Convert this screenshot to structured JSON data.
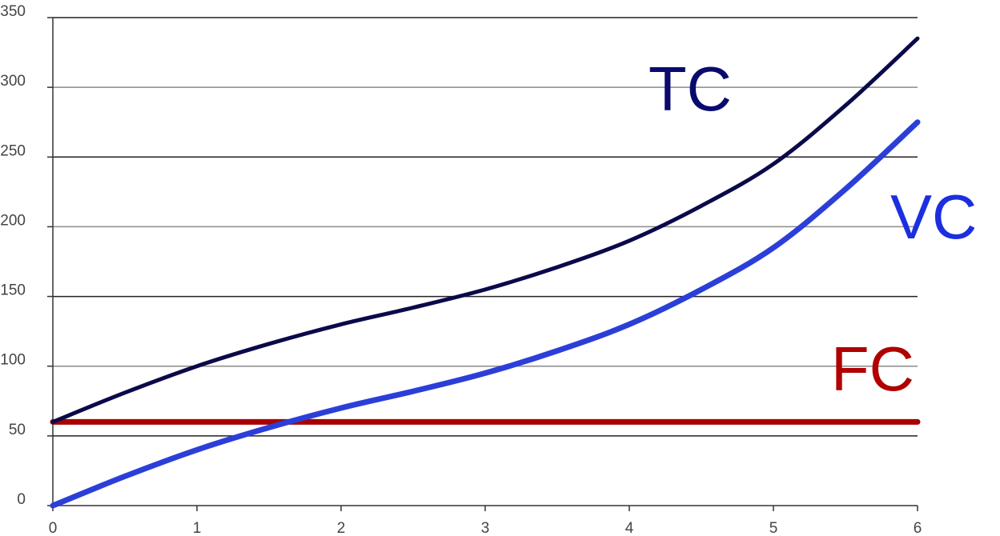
{
  "chart_data": {
    "type": "line",
    "title": "",
    "xlabel": "",
    "ylabel": "",
    "xlim": [
      0,
      6
    ],
    "ylim": [
      0,
      350
    ],
    "x_ticks": [
      "0",
      "1",
      "2",
      "3",
      "4",
      "5",
      "6"
    ],
    "y_ticks": [
      "0",
      "50",
      "100",
      "150",
      "200",
      "250",
      "300",
      "350"
    ],
    "grid": true,
    "legend": "none",
    "x": [
      0,
      0.5,
      1,
      1.5,
      2,
      2.5,
      3,
      3.5,
      4,
      4.5,
      5,
      5.5,
      6
    ],
    "series": [
      {
        "name": "TC",
        "color": "#0a0a4a",
        "label_color": "#0a0a6e",
        "values": [
          60,
          81,
          100,
          116,
          130,
          142,
          155,
          171,
          190,
          215,
          245,
          287,
          335
        ]
      },
      {
        "name": "VC",
        "color": "#2b3fd8",
        "label_color": "#1c2fe0",
        "values": [
          0,
          21,
          40,
          56,
          70,
          82,
          95,
          111,
          130,
          155,
          185,
          227,
          275
        ]
      },
      {
        "name": "FC",
        "color": "#a80000",
        "label_color": "#b00000",
        "values": [
          60,
          60,
          60,
          60,
          60,
          60,
          60,
          60,
          60,
          60,
          60,
          60,
          60
        ]
      }
    ],
    "annotations": [
      "TC",
      "VC",
      "FC"
    ]
  }
}
